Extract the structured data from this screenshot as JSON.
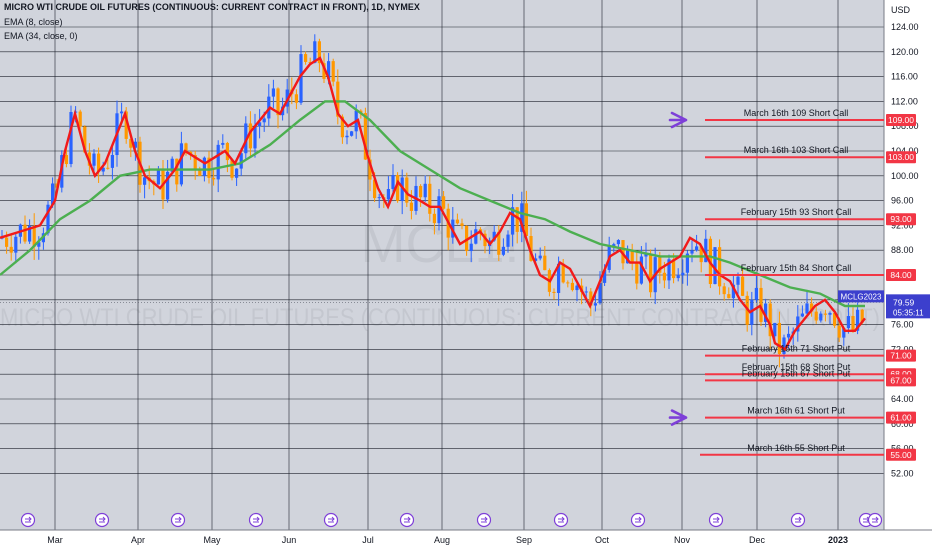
{
  "header": {
    "title": "MICRO WTI CRUDE OIL FUTURES (CONTINUOUS: CURRENT CONTRACT IN FRONT), 1D, NYMEX",
    "ema_fast_label": "EMA (8, close)",
    "ema_slow_label": "EMA (34, close, 0)"
  },
  "watermark": {
    "symbol": "MCL1!",
    "name": "MICRO WTI CRUDE OIL FUTURES (CONTINUOUS: CURRENT CONTRACT IN FRONT)"
  },
  "colors": {
    "background": "#d1d4dc",
    "grid": "#1e222d",
    "candle_up": "#2962ff",
    "candle_down": "#ff9800",
    "ema_fast": "#f21a1a",
    "ema_slow": "#4caf50",
    "level_line": "#f23645",
    "arrow": "#7e3fd8",
    "price_badge": "#3c3fcd"
  },
  "chart_data": {
    "type": "candlestick",
    "currency": "USD",
    "ylim": [
      52,
      125
    ],
    "y_ticks": [
      "124.00",
      "120.00",
      "116.00",
      "112.00",
      "108.00",
      "104.00",
      "100.00",
      "96.00",
      "92.00",
      "88.00",
      "84.00",
      "80.00",
      "76.00",
      "72.00",
      "68.00",
      "64.00",
      "60.00",
      "56.00",
      "52.00"
    ],
    "x_ticks": [
      "Mar",
      "Apr",
      "May",
      "Jun",
      "Jul",
      "Aug",
      "Sep",
      "Oct",
      "Nov",
      "Dec",
      "2023"
    ],
    "grid": true,
    "last_price": {
      "symbol": "MCLG2023",
      "value": "79.59",
      "countdown": "05:35:11"
    },
    "ema_fast_points": [
      [
        0,
        90
      ],
      [
        20,
        91
      ],
      [
        40,
        92
      ],
      [
        55,
        96
      ],
      [
        65,
        104
      ],
      [
        75,
        110
      ],
      [
        85,
        104
      ],
      [
        95,
        100
      ],
      [
        105,
        102
      ],
      [
        115,
        106
      ],
      [
        125,
        110
      ],
      [
        135,
        104
      ],
      [
        145,
        100
      ],
      [
        160,
        98
      ],
      [
        175,
        101
      ],
      [
        185,
        104
      ],
      [
        195,
        103
      ],
      [
        205,
        102
      ],
      [
        215,
        103
      ],
      [
        225,
        104
      ],
      [
        235,
        102
      ],
      [
        250,
        107
      ],
      [
        260,
        109
      ],
      [
        270,
        111
      ],
      [
        280,
        110
      ],
      [
        290,
        113
      ],
      [
        300,
        116
      ],
      [
        310,
        118
      ],
      [
        320,
        119
      ],
      [
        328,
        116
      ],
      [
        338,
        110
      ],
      [
        348,
        108
      ],
      [
        358,
        109
      ],
      [
        368,
        103
      ],
      [
        378,
        98
      ],
      [
        388,
        95
      ],
      [
        398,
        99
      ],
      [
        408,
        97
      ],
      [
        420,
        96
      ],
      [
        430,
        95
      ],
      [
        440,
        95
      ],
      [
        450,
        92
      ],
      [
        460,
        89
      ],
      [
        470,
        90
      ],
      [
        480,
        91
      ],
      [
        490,
        89
      ],
      [
        500,
        91
      ],
      [
        510,
        94
      ],
      [
        520,
        93
      ],
      [
        530,
        88
      ],
      [
        540,
        84
      ],
      [
        550,
        83
      ],
      [
        560,
        86
      ],
      [
        570,
        85
      ],
      [
        580,
        82
      ],
      [
        590,
        79
      ],
      [
        600,
        83
      ],
      [
        610,
        87
      ],
      [
        620,
        88
      ],
      [
        630,
        86
      ],
      [
        640,
        86
      ],
      [
        650,
        83
      ],
      [
        660,
        85
      ],
      [
        670,
        86
      ],
      [
        680,
        87
      ],
      [
        690,
        90
      ],
      [
        700,
        89
      ],
      [
        710,
        86
      ],
      [
        720,
        84
      ],
      [
        730,
        83
      ],
      [
        740,
        80
      ],
      [
        750,
        78
      ],
      [
        760,
        79
      ],
      [
        770,
        76
      ],
      [
        775,
        73
      ],
      [
        785,
        72
      ],
      [
        795,
        75
      ],
      [
        805,
        77
      ],
      [
        815,
        79
      ],
      [
        825,
        80
      ],
      [
        835,
        78
      ],
      [
        845,
        75
      ],
      [
        855,
        75
      ],
      [
        865,
        77
      ]
    ],
    "ema_slow_points": [
      [
        0,
        84
      ],
      [
        30,
        88
      ],
      [
        60,
        93
      ],
      [
        90,
        96
      ],
      [
        120,
        100
      ],
      [
        150,
        101
      ],
      [
        180,
        101
      ],
      [
        210,
        101
      ],
      [
        240,
        102
      ],
      [
        270,
        105
      ],
      [
        300,
        109
      ],
      [
        325,
        112
      ],
      [
        345,
        112
      ],
      [
        370,
        109
      ],
      [
        400,
        104
      ],
      [
        430,
        101
      ],
      [
        460,
        98
      ],
      [
        490,
        96
      ],
      [
        520,
        94
      ],
      [
        545,
        93
      ],
      [
        570,
        91
      ],
      [
        600,
        89
      ],
      [
        630,
        88
      ],
      [
        660,
        87
      ],
      [
        690,
        87
      ],
      [
        710,
        87
      ],
      [
        730,
        86
      ],
      [
        760,
        84
      ],
      [
        790,
        82
      ],
      [
        820,
        81
      ],
      [
        845,
        79
      ],
      [
        865,
        79
      ]
    ],
    "levels": [
      {
        "price": 109,
        "label": "March 16th 109 Short Call",
        "tag": "109.00",
        "arrow": true
      },
      {
        "price": 103,
        "label": "March 16th 103 Short Call",
        "tag": "103.00",
        "arrow": false
      },
      {
        "price": 93,
        "label": "February 15th 93 Short Call",
        "tag": "93.00",
        "arrow": false
      },
      {
        "price": 84,
        "label": "February 15th 84 Short Call",
        "tag": "84.00",
        "arrow": false
      },
      {
        "price": 71,
        "label": "February 15th 71 Short Put",
        "tag": "71.00",
        "arrow": false
      },
      {
        "price": 68,
        "label": "February 15th 68 Short Put",
        "tag": "68.00",
        "arrow": false
      },
      {
        "price": 67,
        "label": "February 15th 67 Short Put",
        "tag": "67.00",
        "arrow": false
      },
      {
        "price": 61,
        "label": "March 16th 61 Short Put",
        "tag": "61.00",
        "arrow": true
      },
      {
        "price": 55,
        "label": "March 16th 55 Short Put",
        "tag": "55.00",
        "arrow": false
      }
    ],
    "event_icon_count": 12
  }
}
